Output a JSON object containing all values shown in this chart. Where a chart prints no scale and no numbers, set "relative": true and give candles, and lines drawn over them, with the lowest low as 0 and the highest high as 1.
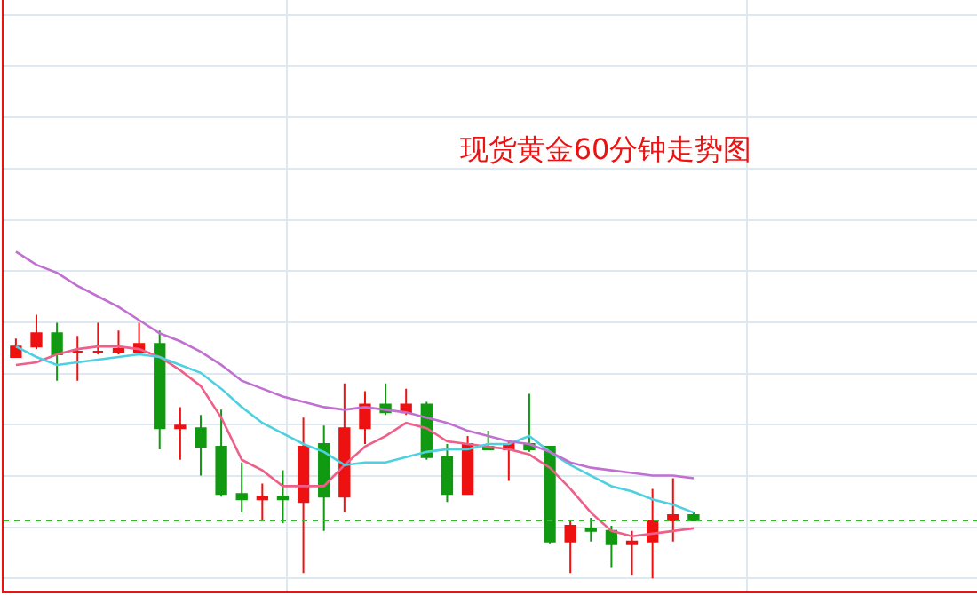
{
  "chart_data": {
    "type": "candlestick",
    "title": "现货黄金60分钟走势图",
    "relative": true,
    "grid": true,
    "categories": [
      null,
      null,
      null,
      null,
      null,
      null,
      null,
      null,
      null,
      null,
      null,
      null,
      null,
      null,
      null,
      null,
      null,
      null,
      null,
      null,
      null,
      null,
      null,
      null,
      null,
      null,
      null,
      null,
      null,
      null,
      null,
      null,
      null,
      null
    ],
    "ohlc": [
      [
        0.84,
        0.91,
        0.84,
        0.88
      ],
      [
        0.88,
        1.0,
        0.87,
        0.93
      ],
      [
        0.93,
        0.97,
        0.75,
        0.85
      ],
      [
        0.86,
        0.92,
        0.75,
        0.86
      ],
      [
        0.86,
        0.97,
        0.85,
        0.86
      ],
      [
        0.86,
        0.94,
        0.85,
        0.87
      ],
      [
        0.86,
        0.97,
        0.86,
        0.89
      ],
      [
        0.89,
        0.94,
        0.49,
        0.57
      ],
      [
        0.57,
        0.65,
        0.45,
        0.58
      ],
      [
        0.57,
        0.62,
        0.39,
        0.5
      ],
      [
        0.5,
        0.64,
        0.31,
        0.32
      ],
      [
        0.32,
        0.44,
        0.25,
        0.3
      ],
      [
        0.3,
        0.36,
        0.22,
        0.31
      ],
      [
        0.31,
        0.41,
        0.21,
        0.3
      ],
      [
        0.29,
        0.61,
        0.02,
        0.5
      ],
      [
        0.51,
        0.58,
        0.18,
        0.31
      ],
      [
        0.31,
        0.74,
        0.25,
        0.57
      ],
      [
        0.57,
        0.71,
        0.51,
        0.66
      ],
      [
        0.66,
        0.74,
        0.62,
        0.63
      ],
      [
        0.63,
        0.72,
        0.62,
        0.66
      ],
      [
        0.66,
        0.67,
        0.45,
        0.46
      ],
      [
        0.46,
        0.51,
        0.29,
        0.32
      ],
      [
        0.32,
        0.54,
        0.32,
        0.51
      ],
      [
        0.5,
        0.56,
        0.49,
        0.49
      ],
      [
        0.49,
        0.52,
        0.37,
        0.51
      ],
      [
        0.51,
        0.7,
        0.48,
        0.49
      ],
      [
        0.5,
        0.5,
        0.13,
        0.14
      ],
      [
        0.14,
        0.22,
        0.02,
        0.2
      ],
      [
        0.19,
        0.23,
        0.14,
        0.18
      ],
      [
        0.18,
        0.2,
        0.04,
        0.13
      ],
      [
        0.13,
        0.18,
        0.01,
        0.14
      ],
      [
        0.14,
        0.34,
        0.0,
        0.22
      ],
      [
        0.22,
        0.38,
        0.14,
        0.24
      ],
      [
        0.24,
        0.25,
        0.22,
        0.22
      ]
    ],
    "colors": [
      "#ee1111",
      "#ee1111",
      "#119911",
      "#ee1111",
      "#ee1111",
      "#ee1111",
      "#ee1111",
      "#119911",
      "#ee1111",
      "#119911",
      "#119911",
      "#119911",
      "#ee1111",
      "#119911",
      "#ee1111",
      "#119911",
      "#ee1111",
      "#ee1111",
      "#119911",
      "#ee1111",
      "#119911",
      "#119911",
      "#ee1111",
      "#119911",
      "#ee1111",
      "#119911",
      "#119911",
      "#ee1111",
      "#119911",
      "#119911",
      "#ee1111",
      "#ee1111",
      "#ee1111",
      "#119911"
    ],
    "series": [
      {
        "type": "line",
        "color": "#ee5f8a",
        "values": [
          0.81,
          0.82,
          0.85,
          0.87,
          0.88,
          0.88,
          0.87,
          0.84,
          0.79,
          0.73,
          0.61,
          0.45,
          0.41,
          0.35,
          0.35,
          0.35,
          0.43,
          0.5,
          0.54,
          0.59,
          0.57,
          0.52,
          0.51,
          0.5,
          0.49,
          0.47,
          0.42,
          0.34,
          0.25,
          0.18,
          0.16,
          0.17,
          0.18,
          0.19
        ]
      },
      {
        "type": "line",
        "color": "#4fd0e0",
        "values": [
          0.88,
          0.84,
          0.81,
          0.82,
          0.83,
          0.84,
          0.85,
          0.84,
          0.81,
          0.78,
          0.72,
          0.65,
          0.59,
          0.55,
          0.51,
          0.48,
          0.43,
          0.44,
          0.44,
          0.46,
          0.48,
          0.49,
          0.49,
          0.51,
          0.51,
          0.54,
          0.48,
          0.43,
          0.39,
          0.35,
          0.33,
          0.3,
          0.28,
          0.25
        ]
      },
      {
        "type": "line",
        "color": "#c070d0",
        "values": [
          1.24,
          1.19,
          1.16,
          1.11,
          1.07,
          1.03,
          0.98,
          0.93,
          0.9,
          0.86,
          0.81,
          0.75,
          0.72,
          0.69,
          0.67,
          0.65,
          0.64,
          0.65,
          0.64,
          0.63,
          0.61,
          0.59,
          0.56,
          0.54,
          0.52,
          0.51,
          0.48,
          0.44,
          0.42,
          0.41,
          0.4,
          0.39,
          0.39,
          0.38
        ]
      }
    ],
    "ref_lines": [
      {
        "axis": "y",
        "value": 0.22,
        "color": "#33bb33",
        "line_style": "dotted"
      }
    ]
  }
}
